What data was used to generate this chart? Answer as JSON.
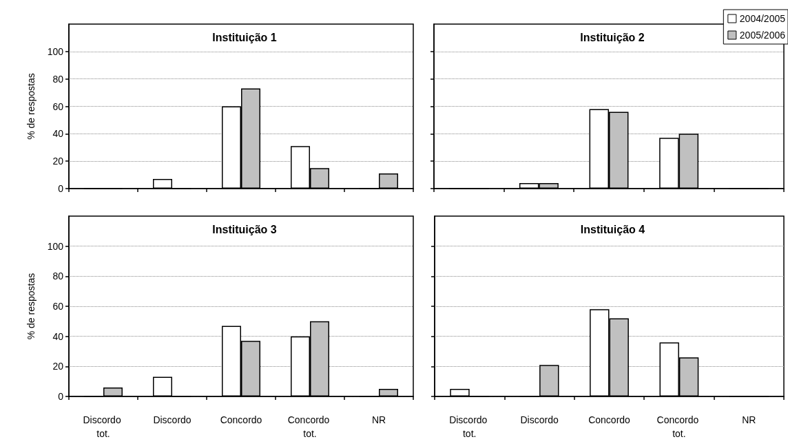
{
  "chart_data": [
    {
      "type": "bar",
      "title": "Instituição 1",
      "ylabel": "% de respostas",
      "categories": [
        "Discordo tot.",
        "Discordo",
        "Concordo",
        "Concordo tot.",
        "NR"
      ],
      "series": [
        {
          "color": "#ffffff",
          "values": [
            0,
            7,
            60,
            31,
            0
          ]
        },
        {
          "color": "#c0c0c0",
          "values": [
            0,
            0,
            73,
            15,
            11
          ]
        }
      ],
      "ylim": [
        0,
        120
      ],
      "yticks": [
        0,
        20,
        40,
        60,
        80,
        100
      ],
      "grid": "y",
      "tick_labels": "y"
    },
    {
      "type": "bar",
      "title": "Instituição 2",
      "categories": [
        "Discordo tot.",
        "Discordo",
        "Concordo",
        "Concordo tot.",
        "NR"
      ],
      "series": [
        {
          "name": "2004/2005",
          "color": "#ffffff",
          "values": [
            0,
            4,
            58,
            37,
            0
          ]
        },
        {
          "name": "2005/2006",
          "color": "#c0c0c0",
          "values": [
            0,
            4,
            56,
            40,
            0
          ]
        }
      ],
      "ylim": [
        0,
        120
      ],
      "yticks": [
        0,
        20,
        40,
        60,
        80,
        100
      ],
      "grid": "y",
      "tick_labels": false,
      "legend": "top right"
    },
    {
      "type": "bar",
      "title": "Instituição 3",
      "ylabel": "% de respostas",
      "categories": [
        "Discordo tot.",
        "Discordo",
        "Concordo",
        "Concordo tot.",
        "NR"
      ],
      "series": [
        {
          "color": "#ffffff",
          "values": [
            0,
            13,
            47,
            40,
            0
          ]
        },
        {
          "color": "#c0c0c0",
          "values": [
            6,
            0,
            37,
            50,
            5
          ]
        }
      ],
      "ylim": [
        0,
        120
      ],
      "yticks": [
        0,
        20,
        40,
        60,
        80,
        100
      ],
      "grid": "y"
    },
    {
      "type": "bar",
      "title": "Instituição 4",
      "categories": [
        "Discordo tot.",
        "Discordo",
        "Concordo",
        "Concordo tot.",
        "NR"
      ],
      "series": [
        {
          "color": "#ffffff",
          "values": [
            5,
            0,
            58,
            36,
            0
          ]
        },
        {
          "color": "#c0c0c0",
          "values": [
            0,
            21,
            52,
            26,
            0
          ]
        }
      ],
      "ylim": [
        0,
        120
      ],
      "yticks": [
        0,
        20,
        40,
        60,
        80,
        100
      ],
      "grid": "y",
      "tick_labels": "x"
    }
  ]
}
